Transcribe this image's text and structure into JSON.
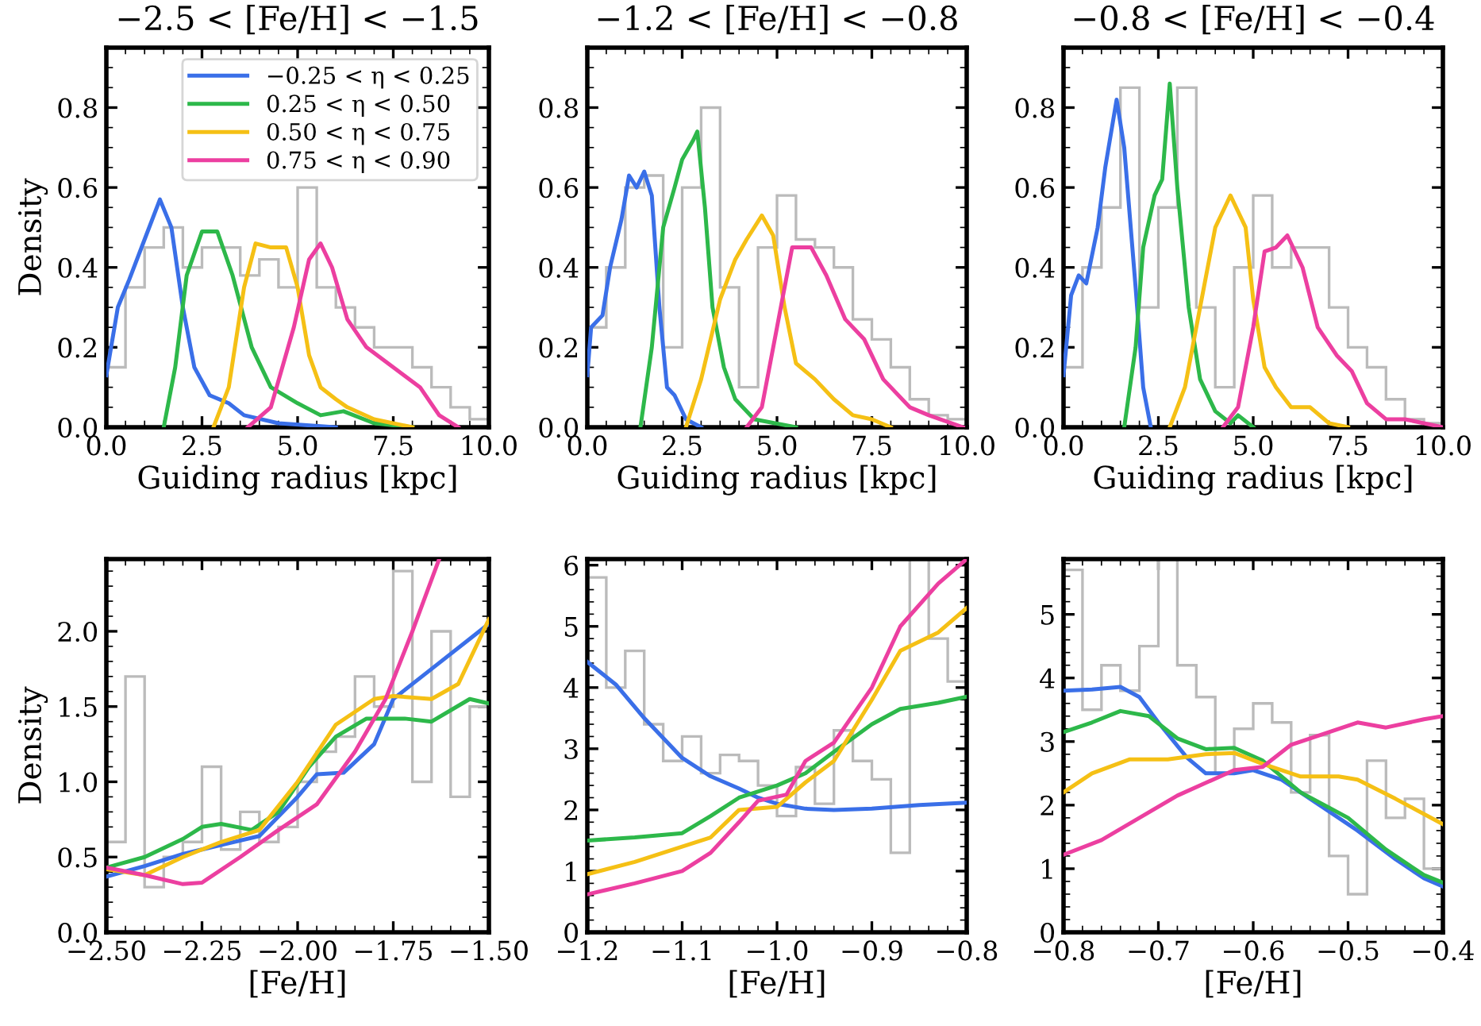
{
  "chart_data": [
    {
      "type": "line",
      "title": "−2.5 < [Fe/H] < −1.5",
      "xlabel": "Guiding radius [kpc]",
      "ylabel": "Density",
      "legend": "top right",
      "xlim": [
        0,
        10
      ],
      "xticks": [
        {
          "value": 0,
          "label": "0.0"
        },
        {
          "value": 2.5,
          "label": "2.5"
        },
        {
          "value": 5,
          "label": "5.0"
        },
        {
          "value": 7.5,
          "label": "7.5"
        },
        {
          "value": 10,
          "label": "10.0"
        }
      ],
      "ylim": [
        0,
        0.95
      ],
      "yticks": [
        {
          "value": 0,
          "label": "0.0"
        },
        {
          "value": 0.2,
          "label": "0.2"
        },
        {
          "value": 0.4,
          "label": "0.4"
        },
        {
          "value": 0.6,
          "label": "0.6"
        },
        {
          "value": 0.8,
          "label": "0.8"
        }
      ],
      "series": [
        {
          "type": "histogram",
          "color": "#bbbbbb",
          "bins": [
            0,
            0.5,
            1,
            1.5,
            2,
            2.5,
            3,
            3.5,
            4,
            4.5,
            5,
            5.5,
            6,
            6.5,
            7,
            7.5,
            8,
            8.5,
            9,
            9.5,
            10
          ],
          "values": [
            0.15,
            0.35,
            0.45,
            0.5,
            0.4,
            0.45,
            0.45,
            0.38,
            0.42,
            0.35,
            0.6,
            0.35,
            0.3,
            0.25,
            0.2,
            0.2,
            0.15,
            0.1,
            0.05,
            0.02
          ]
        },
        {
          "name": "−0.25 < η < 0.25",
          "color": "#3a6fe8",
          "x": [
            0,
            0.3,
            0.6,
            1.0,
            1.4,
            1.7,
            2.0,
            2.3,
            2.7,
            3.2,
            3.6,
            4.5,
            6
          ],
          "values": [
            0.13,
            0.3,
            0.37,
            0.47,
            0.57,
            0.5,
            0.3,
            0.15,
            0.08,
            0.06,
            0.03,
            0.01,
            0
          ]
        },
        {
          "name": "0.25 < η < 0.50",
          "color": "#2db84a",
          "x": [
            1.5,
            1.8,
            2.1,
            2.5,
            2.9,
            3.3,
            3.8,
            4.3,
            5,
            5.6,
            6.2,
            7,
            8
          ],
          "values": [
            0,
            0.15,
            0.38,
            0.49,
            0.49,
            0.38,
            0.2,
            0.1,
            0.06,
            0.03,
            0.04,
            0.01,
            0
          ]
        },
        {
          "name": "0.50 < η < 0.75",
          "color": "#f5c015",
          "x": [
            2.8,
            3.2,
            3.6,
            3.9,
            4.3,
            4.7,
            5.0,
            5.3,
            5.6,
            6.0,
            6.3,
            7,
            8
          ],
          "values": [
            0,
            0.1,
            0.35,
            0.46,
            0.45,
            0.45,
            0.35,
            0.18,
            0.1,
            0.07,
            0.05,
            0.02,
            0
          ]
        },
        {
          "name": "0.75 < η < 0.90",
          "color": "#ec3fa0",
          "x": [
            3.7,
            4.3,
            4.9,
            5.3,
            5.6,
            5.9,
            6.3,
            6.8,
            7.5,
            8.2,
            8.7,
            9.2
          ],
          "values": [
            0,
            0.05,
            0.25,
            0.42,
            0.46,
            0.4,
            0.27,
            0.2,
            0.15,
            0.1,
            0.03,
            0
          ]
        }
      ]
    },
    {
      "type": "line",
      "title": "−1.2 < [Fe/H] < −0.8",
      "xlabel": "Guiding radius [kpc]",
      "xlim": [
        0,
        10
      ],
      "xticks": [
        {
          "value": 0,
          "label": "0.0"
        },
        {
          "value": 2.5,
          "label": "2.5"
        },
        {
          "value": 5,
          "label": "5.0"
        },
        {
          "value": 7.5,
          "label": "7.5"
        },
        {
          "value": 10,
          "label": "10.0"
        }
      ],
      "ylim": [
        0,
        0.95
      ],
      "yticks": [
        {
          "value": 0,
          "label": "0.0"
        },
        {
          "value": 0.2,
          "label": "0.2"
        },
        {
          "value": 0.4,
          "label": "0.4"
        },
        {
          "value": 0.6,
          "label": "0.6"
        },
        {
          "value": 0.8,
          "label": "0.8"
        }
      ],
      "series": [
        {
          "type": "histogram",
          "color": "#bbbbbb",
          "bins": [
            0,
            0.5,
            1,
            1.5,
            2,
            2.5,
            3,
            3.5,
            4,
            4.5,
            5,
            5.5,
            6,
            6.5,
            7,
            7.5,
            8,
            8.5,
            9,
            9.5,
            10
          ],
          "values": [
            0.25,
            0.4,
            0.6,
            0.63,
            0.2,
            0.6,
            0.8,
            0.35,
            0.1,
            0.45,
            0.58,
            0.47,
            0.45,
            0.4,
            0.27,
            0.22,
            0.15,
            0.07,
            0.03,
            0.02
          ]
        },
        {
          "color": "#3a6fe8",
          "x": [
            0,
            0.1,
            0.4,
            0.6,
            0.9,
            1.1,
            1.3,
            1.5,
            1.7,
            1.9,
            2.1,
            2.3,
            2.6,
            3.0
          ],
          "values": [
            0.13,
            0.25,
            0.28,
            0.4,
            0.52,
            0.63,
            0.6,
            0.64,
            0.58,
            0.3,
            0.1,
            0.08,
            0.02,
            0
          ]
        },
        {
          "color": "#2db84a",
          "x": [
            1.4,
            1.7,
            2.0,
            2.3,
            2.5,
            2.8,
            2.9,
            3.1,
            3.3,
            3.6,
            3.9,
            4.4,
            5.5
          ],
          "values": [
            0,
            0.2,
            0.5,
            0.6,
            0.67,
            0.72,
            0.74,
            0.55,
            0.3,
            0.15,
            0.07,
            0.02,
            0
          ]
        },
        {
          "color": "#f5c015",
          "x": [
            2.6,
            3.0,
            3.5,
            3.9,
            4.2,
            4.6,
            4.9,
            5.2,
            5.5,
            6.0,
            6.5,
            7.0,
            7.5,
            8.0
          ],
          "values": [
            0,
            0.12,
            0.32,
            0.42,
            0.47,
            0.53,
            0.48,
            0.3,
            0.16,
            0.12,
            0.07,
            0.03,
            0.02,
            0
          ]
        },
        {
          "color": "#ec3fa0",
          "x": [
            4.2,
            4.6,
            5.0,
            5.4,
            5.9,
            6.3,
            6.8,
            7.3,
            7.8,
            8.5,
            9.0,
            9.9
          ],
          "values": [
            0,
            0.05,
            0.25,
            0.45,
            0.45,
            0.38,
            0.27,
            0.22,
            0.12,
            0.05,
            0.03,
            0
          ]
        }
      ]
    },
    {
      "type": "line",
      "title": "−0.8 < [Fe/H] < −0.4",
      "xlabel": "Guiding radius [kpc]",
      "xlim": [
        0,
        10
      ],
      "xticks": [
        {
          "value": 0,
          "label": "0.0"
        },
        {
          "value": 2.5,
          "label": "2.5"
        },
        {
          "value": 5,
          "label": "5.0"
        },
        {
          "value": 7.5,
          "label": "7.5"
        },
        {
          "value": 10,
          "label": "10.0"
        }
      ],
      "ylim": [
        0,
        0.95
      ],
      "yticks": [
        {
          "value": 0,
          "label": "0.0"
        },
        {
          "value": 0.2,
          "label": "0.2"
        },
        {
          "value": 0.4,
          "label": "0.4"
        },
        {
          "value": 0.6,
          "label": "0.6"
        },
        {
          "value": 0.8,
          "label": "0.8"
        }
      ],
      "series": [
        {
          "type": "histogram",
          "color": "#bbbbbb",
          "bins": [
            0,
            0.5,
            1,
            1.5,
            2,
            2.5,
            3,
            3.5,
            4,
            4.5,
            5,
            5.5,
            6,
            6.5,
            7,
            7.5,
            8,
            8.5,
            9,
            9.5,
            10
          ],
          "values": [
            0.15,
            0.4,
            0.55,
            0.85,
            0.3,
            0.55,
            0.85,
            0.3,
            0.1,
            0.4,
            0.58,
            0.4,
            0.45,
            0.45,
            0.3,
            0.2,
            0.15,
            0.07,
            0.02,
            0.01
          ]
        },
        {
          "color": "#3a6fe8",
          "x": [
            0,
            0.2,
            0.4,
            0.6,
            0.9,
            1.1,
            1.4,
            1.6,
            1.9,
            2.1,
            2.3
          ],
          "values": [
            0.13,
            0.33,
            0.38,
            0.36,
            0.5,
            0.65,
            0.82,
            0.7,
            0.35,
            0.1,
            0
          ]
        },
        {
          "color": "#2db84a",
          "x": [
            1.6,
            1.9,
            2.1,
            2.4,
            2.6,
            2.8,
            3.0,
            3.3,
            3.6,
            4.0,
            4.4,
            4.6,
            5.0
          ],
          "values": [
            0,
            0.2,
            0.45,
            0.58,
            0.62,
            0.86,
            0.6,
            0.3,
            0.12,
            0.04,
            0.01,
            0.03,
            0
          ]
        },
        {
          "color": "#f5c015",
          "x": [
            2.8,
            3.2,
            3.6,
            4.0,
            4.4,
            4.8,
            5.0,
            5.3,
            5.6,
            6.0,
            6.5,
            7.0,
            7.5
          ],
          "values": [
            0,
            0.1,
            0.3,
            0.5,
            0.58,
            0.5,
            0.32,
            0.15,
            0.1,
            0.05,
            0.05,
            0.01,
            0
          ]
        },
        {
          "color": "#ec3fa0",
          "x": [
            4.2,
            4.6,
            5.0,
            5.3,
            5.6,
            5.9,
            6.3,
            6.7,
            7.2,
            7.6,
            8.0,
            8.5,
            9.0,
            10
          ],
          "values": [
            0,
            0.05,
            0.25,
            0.44,
            0.45,
            0.48,
            0.4,
            0.25,
            0.18,
            0.14,
            0.06,
            0.02,
            0.02,
            0
          ]
        }
      ]
    },
    {
      "type": "line",
      "xlabel": "[Fe/H]",
      "ylabel": "Density",
      "xlim": [
        -2.5,
        -1.5
      ],
      "xticks": [
        {
          "value": -2.5,
          "label": "−2.50"
        },
        {
          "value": -2.25,
          "label": "−2.25"
        },
        {
          "value": -2.0,
          "label": "−2.00"
        },
        {
          "value": -1.75,
          "label": "−1.75"
        },
        {
          "value": -1.5,
          "label": "−1.50"
        }
      ],
      "ylim": [
        0,
        2.48
      ],
      "yticks": [
        {
          "value": 0,
          "label": "0.0"
        },
        {
          "value": 0.5,
          "label": "0.5"
        },
        {
          "value": 1,
          "label": "1.0"
        },
        {
          "value": 1.5,
          "label": "1.5"
        },
        {
          "value": 2,
          "label": "2.0"
        }
      ],
      "series": [
        {
          "type": "histogram",
          "color": "#bbbbbb",
          "bins": [
            -2.5,
            -2.45,
            -2.4,
            -2.35,
            -2.3,
            -2.25,
            -2.2,
            -2.15,
            -2.1,
            -2.05,
            -2.0,
            -1.95,
            -1.9,
            -1.85,
            -1.8,
            -1.75,
            -1.7,
            -1.65,
            -1.6,
            -1.55,
            -1.5
          ],
          "values": [
            0.6,
            1.7,
            0.3,
            0.5,
            0.6,
            1.1,
            0.55,
            0.8,
            0.6,
            0.7,
            1.0,
            1.2,
            1.3,
            1.7,
            1.5,
            2.4,
            1.0,
            2.0,
            0.9,
            1.5
          ]
        },
        {
          "color": "#3a6fe8",
          "x": [
            -2.5,
            -2.4,
            -2.3,
            -2.2,
            -2.1,
            -2.0,
            -1.95,
            -1.88,
            -1.8,
            -1.75,
            -1.65,
            -1.55,
            -1.5
          ],
          "values": [
            0.37,
            0.44,
            0.52,
            0.58,
            0.64,
            0.9,
            1.05,
            1.06,
            1.25,
            1.55,
            1.75,
            1.95,
            2.05
          ]
        },
        {
          "color": "#2db84a",
          "x": [
            -2.5,
            -2.4,
            -2.3,
            -2.25,
            -2.2,
            -2.12,
            -2.05,
            -1.97,
            -1.9,
            -1.82,
            -1.72,
            -1.65,
            -1.55,
            -1.5
          ],
          "values": [
            0.43,
            0.5,
            0.62,
            0.7,
            0.72,
            0.68,
            0.8,
            1.1,
            1.3,
            1.42,
            1.42,
            1.4,
            1.55,
            1.52
          ]
        },
        {
          "color": "#f5c015",
          "x": [
            -2.5,
            -2.4,
            -2.3,
            -2.2,
            -2.1,
            -2.0,
            -1.9,
            -1.8,
            -1.75,
            -1.65,
            -1.58,
            -1.5
          ],
          "values": [
            0.42,
            0.38,
            0.5,
            0.6,
            0.68,
            1.0,
            1.38,
            1.55,
            1.57,
            1.55,
            1.65,
            2.08
          ]
        },
        {
          "color": "#ec3fa0",
          "x": [
            -2.5,
            -2.4,
            -2.3,
            -2.25,
            -2.15,
            -2.05,
            -1.95,
            -1.85,
            -1.77,
            -1.7,
            -1.63
          ],
          "values": [
            0.43,
            0.38,
            0.32,
            0.33,
            0.5,
            0.68,
            0.85,
            1.2,
            1.55,
            2.0,
            2.48
          ]
        }
      ]
    },
    {
      "type": "line",
      "xlabel": "[Fe/H]",
      "xlim": [
        -1.2,
        -0.8
      ],
      "xticks": [
        {
          "value": -1.2,
          "label": "−1.2"
        },
        {
          "value": -1.1,
          "label": "−1.1"
        },
        {
          "value": -1.0,
          "label": "−1.0"
        },
        {
          "value": -0.9,
          "label": "−0.9"
        },
        {
          "value": -0.8,
          "label": "−0.8"
        }
      ],
      "ylim": [
        0,
        6.1
      ],
      "yticks": [
        0,
        1,
        2,
        3,
        4,
        5,
        6
      ],
      "series": [
        {
          "type": "histogram",
          "color": "#bbbbbb",
          "bins": [
            -1.2,
            -1.18,
            -1.16,
            -1.14,
            -1.12,
            -1.1,
            -1.08,
            -1.06,
            -1.04,
            -1.02,
            -1.0,
            -0.98,
            -0.96,
            -0.94,
            -0.92,
            -0.9,
            -0.88,
            -0.86,
            -0.84,
            -0.82,
            -0.8
          ],
          "values": [
            5.8,
            4.0,
            4.6,
            3.4,
            2.8,
            3.2,
            2.6,
            2.9,
            2.8,
            2.4,
            1.9,
            2.7,
            2.1,
            3.3,
            2.8,
            2.5,
            1.3,
            6.1,
            4.8,
            4.1
          ]
        },
        {
          "color": "#3a6fe8",
          "x": [
            -1.2,
            -1.17,
            -1.14,
            -1.1,
            -1.07,
            -1.04,
            -1.02,
            -1.0,
            -0.97,
            -0.94,
            -0.9,
            -0.85,
            -0.8
          ],
          "values": [
            4.42,
            4.05,
            3.5,
            2.85,
            2.55,
            2.35,
            2.2,
            2.1,
            2.02,
            2.0,
            2.02,
            2.08,
            2.12
          ]
        },
        {
          "color": "#2db84a",
          "x": [
            -1.2,
            -1.15,
            -1.1,
            -1.07,
            -1.04,
            -1.0,
            -0.97,
            -0.94,
            -0.9,
            -0.87,
            -0.83,
            -0.8
          ],
          "values": [
            1.5,
            1.55,
            1.62,
            1.9,
            2.2,
            2.4,
            2.6,
            2.95,
            3.4,
            3.65,
            3.75,
            3.85
          ]
        },
        {
          "color": "#f5c015",
          "x": [
            -1.2,
            -1.15,
            -1.1,
            -1.07,
            -1.04,
            -1.0,
            -0.97,
            -0.94,
            -0.9,
            -0.87,
            -0.83,
            -0.8
          ],
          "values": [
            0.95,
            1.15,
            1.4,
            1.55,
            2.0,
            2.05,
            2.45,
            2.8,
            3.8,
            4.6,
            4.9,
            5.3
          ]
        },
        {
          "color": "#ec3fa0",
          "x": [
            -1.2,
            -1.15,
            -1.1,
            -1.07,
            -1.04,
            -1.02,
            -0.99,
            -0.97,
            -0.94,
            -0.9,
            -0.87,
            -0.83,
            -0.8
          ],
          "values": [
            0.62,
            0.8,
            1.0,
            1.3,
            1.8,
            2.15,
            2.25,
            2.8,
            3.1,
            4.0,
            5.0,
            5.7,
            6.1
          ]
        }
      ]
    },
    {
      "type": "line",
      "xlabel": "[Fe/H]",
      "xlim": [
        -0.8,
        -0.4
      ],
      "xticks": [
        {
          "value": -0.8,
          "label": "−0.8"
        },
        {
          "value": -0.7,
          "label": "−0.7"
        },
        {
          "value": -0.6,
          "label": "−0.6"
        },
        {
          "value": -0.5,
          "label": "−0.5"
        },
        {
          "value": -0.4,
          "label": "−0.4"
        }
      ],
      "ylim": [
        0,
        5.87
      ],
      "yticks": [
        0,
        1,
        2,
        3,
        4,
        5
      ],
      "series": [
        {
          "type": "histogram",
          "color": "#bbbbbb",
          "bins": [
            -0.8,
            -0.78,
            -0.76,
            -0.74,
            -0.72,
            -0.7,
            -0.68,
            -0.66,
            -0.64,
            -0.62,
            -0.6,
            -0.58,
            -0.56,
            -0.54,
            -0.52,
            -0.5,
            -0.48,
            -0.46,
            -0.44,
            -0.42,
            -0.4
          ],
          "values": [
            5.7,
            3.5,
            4.2,
            3.8,
            4.5,
            5.87,
            4.2,
            3.7,
            2.5,
            3.2,
            3.6,
            3.3,
            2.2,
            3.1,
            1.2,
            0.6,
            2.7,
            1.8,
            2.1,
            1.0
          ]
        },
        {
          "color": "#3a6fe8",
          "x": [
            -0.8,
            -0.77,
            -0.74,
            -0.72,
            -0.7,
            -0.67,
            -0.65,
            -0.62,
            -0.6,
            -0.57,
            -0.53,
            -0.49,
            -0.45,
            -0.42,
            -0.4
          ],
          "values": [
            3.8,
            3.82,
            3.86,
            3.7,
            3.3,
            2.75,
            2.5,
            2.5,
            2.55,
            2.4,
            2.0,
            1.6,
            1.15,
            0.85,
            0.72
          ]
        },
        {
          "color": "#2db84a",
          "x": [
            -0.8,
            -0.77,
            -0.74,
            -0.71,
            -0.68,
            -0.65,
            -0.62,
            -0.59,
            -0.55,
            -0.5,
            -0.46,
            -0.42,
            -0.4
          ],
          "values": [
            3.15,
            3.3,
            3.48,
            3.4,
            3.05,
            2.88,
            2.9,
            2.7,
            2.2,
            1.8,
            1.3,
            0.9,
            0.78
          ]
        },
        {
          "color": "#f5c015",
          "x": [
            -0.8,
            -0.77,
            -0.73,
            -0.69,
            -0.65,
            -0.62,
            -0.59,
            -0.55,
            -0.51,
            -0.49,
            -0.45,
            -0.4
          ],
          "values": [
            2.2,
            2.5,
            2.72,
            2.72,
            2.8,
            2.82,
            2.65,
            2.45,
            2.45,
            2.4,
            2.1,
            1.7
          ]
        },
        {
          "color": "#ec3fa0",
          "x": [
            -0.8,
            -0.76,
            -0.72,
            -0.68,
            -0.65,
            -0.62,
            -0.59,
            -0.56,
            -0.52,
            -0.49,
            -0.46,
            -0.42,
            -0.4
          ],
          "values": [
            1.22,
            1.45,
            1.8,
            2.15,
            2.35,
            2.55,
            2.6,
            2.95,
            3.15,
            3.3,
            3.22,
            3.35,
            3.4
          ]
        }
      ]
    }
  ]
}
